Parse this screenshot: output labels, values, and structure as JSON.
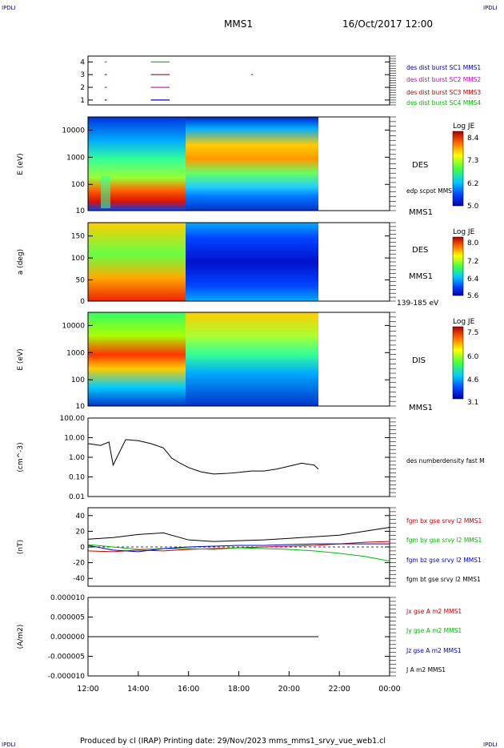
{
  "header": {
    "corner_left": "IPDLI",
    "corner_right": "IPDLI",
    "mission": "MMS1",
    "datetime": "16/Oct/2017 12:00",
    "footer": "Produced by cl (IRAP)   Printing date: 29/Nov/2023   mms_mms1_srvy_vue_web1.cl",
    "corner_bottom_left": "IPDLI",
    "corner_bottom_right": "IPDLI"
  },
  "chart_data": [
    {
      "type": "line",
      "panel": "burst availability",
      "y_ticks": [
        "4",
        "3",
        "2",
        "1"
      ],
      "series": [
        {
          "name": "des dist burst SC1 MMS1",
          "color": "#0000cc",
          "row": 1,
          "segments": [
            [
              "12:40",
              "12:45"
            ],
            [
              "14:30",
              "15:15"
            ]
          ]
        },
        {
          "name": "des dist burst SC2 MMS2",
          "color": "#cc00cc",
          "row": 2,
          "segments": [
            [
              "12:40",
              "12:45"
            ],
            [
              "14:30",
              "15:15"
            ]
          ]
        },
        {
          "name": "des dist burst SC3 MMS3",
          "color": "#cc0000",
          "row": 3,
          "segments": [
            [
              "12:40",
              "12:45"
            ],
            [
              "14:30",
              "15:15"
            ],
            [
              "18:30",
              "18:31"
            ]
          ]
        },
        {
          "name": "des dist burst SC4 MMS4",
          "color": "#00bb00",
          "row": 4,
          "segments": [
            [
              "12:40",
              "12:45"
            ],
            [
              "14:30",
              "15:15"
            ]
          ]
        }
      ]
    },
    {
      "type": "heatmap",
      "panel": "DES energy spectrogram",
      "ylabel": "E (eV)",
      "y_ticks": [
        "10000",
        "1000",
        "100",
        "10"
      ],
      "label": "DES",
      "extra_label": "edp scpot MMS1",
      "sat": "MMS1",
      "colorbar": {
        "title": "Log JE",
        "ticks": [
          "8.4",
          "7.3",
          "6.2",
          "5.0"
        ]
      },
      "data_end": "21:10"
    },
    {
      "type": "heatmap",
      "panel": "DES pitch angle",
      "ylabel": "a (deg)",
      "y_ticks": [
        "150",
        "100",
        "50",
        "0"
      ],
      "label": "DES",
      "sat": "MMS1",
      "energy": "139-185 eV",
      "colorbar": {
        "title": "Log JE",
        "ticks": [
          "8.0",
          "7.2",
          "6.4",
          "5.6"
        ]
      },
      "data_end": "21:10"
    },
    {
      "type": "heatmap",
      "panel": "DIS energy spectrogram",
      "ylabel": "E (eV)",
      "y_ticks": [
        "10000",
        "1000",
        "100",
        "10"
      ],
      "label": "DIS",
      "sat": "MMS1",
      "colorbar": {
        "title": "Log JE",
        "ticks": [
          "7.5",
          "6.0",
          "4.6",
          "3.1"
        ]
      },
      "data_end": "21:10"
    },
    {
      "type": "line",
      "panel": "density",
      "ylabel": "(cm^-3)",
      "y_scale": "log",
      "y_ticks": [
        "100.00",
        "10.00",
        "1.00",
        "0.10",
        "0.01"
      ],
      "series": [
        {
          "name": "des numberdensity fast M",
          "color": "#000000",
          "x": [
            "12:00",
            "12:30",
            "12:50",
            "13:00",
            "13:30",
            "14:00",
            "14:30",
            "15:00",
            "15:20",
            "15:40",
            "16:00",
            "16:30",
            "17:00",
            "17:30",
            "18:00",
            "18:30",
            "19:00",
            "19:30",
            "20:00",
            "20:30",
            "21:00",
            "21:10"
          ],
          "values": [
            5,
            4,
            6,
            0.4,
            8,
            7,
            5,
            3,
            0.9,
            0.5,
            0.3,
            0.18,
            0.14,
            0.15,
            0.17,
            0.2,
            0.2,
            0.25,
            0.35,
            0.5,
            0.4,
            0.25
          ]
        }
      ]
    },
    {
      "type": "line",
      "panel": "magnetic field",
      "ylabel": "(nT)",
      "ylim": [
        -50,
        50
      ],
      "y_ticks": [
        "40",
        "20",
        "0",
        "-20",
        "-40"
      ],
      "series": [
        {
          "name": "fgm bx gse srvy l2 MMS1",
          "color": "#cc0000",
          "x": [
            "12:00",
            "13:00",
            "14:00",
            "15:00",
            "16:00",
            "17:00",
            "18:00",
            "19:00",
            "20:00",
            "21:00",
            "22:00",
            "23:00",
            "00:00"
          ],
          "values": [
            -5,
            -6,
            -4,
            -5,
            -3,
            -2,
            -1,
            0,
            1,
            2,
            4,
            6,
            7
          ]
        },
        {
          "name": "fgm by gse srvy l2 MMS1",
          "color": "#00bb00",
          "x": [
            "12:00",
            "13:00",
            "14:00",
            "15:00",
            "16:00",
            "17:00",
            "18:00",
            "19:00",
            "20:00",
            "21:00",
            "22:00",
            "23:00",
            "00:00"
          ],
          "values": [
            3,
            0,
            -3,
            -2,
            -2,
            -3,
            -1,
            -2,
            -3,
            -5,
            -8,
            -12,
            -18
          ]
        },
        {
          "name": "fgm bz gse srvy l2 MMS1",
          "color": "#0000cc",
          "x": [
            "12:00",
            "13:00",
            "14:00",
            "15:00",
            "16:00",
            "17:00",
            "18:00",
            "19:00",
            "20:00",
            "21:00",
            "22:00",
            "23:00",
            "00:00"
          ],
          "values": [
            2,
            -4,
            -6,
            -2,
            0,
            1,
            2,
            2,
            3,
            4,
            4,
            4,
            4
          ]
        },
        {
          "name": "fgm bt gse srvy l2 MMS1",
          "color": "#000000",
          "x": [
            "12:00",
            "13:00",
            "14:00",
            "15:00",
            "16:00",
            "17:00",
            "18:00",
            "19:00",
            "20:00",
            "21:00",
            "22:00",
            "23:00",
            "00:00"
          ],
          "values": [
            10,
            12,
            16,
            18,
            9,
            7,
            8,
            9,
            11,
            13,
            15,
            20,
            25
          ]
        }
      ]
    },
    {
      "type": "line",
      "panel": "current density",
      "ylabel": "(A/m2)",
      "ylim": [
        -1e-05,
        1e-05
      ],
      "y_ticks": [
        "0.000010",
        "0.000005",
        "0.000000",
        "-0.000005",
        "-0.000010"
      ],
      "x_ticks": [
        "12:00",
        "14:00",
        "16:00",
        "18:00",
        "20:00",
        "22:00",
        "00:00"
      ],
      "series": [
        {
          "name": "Jx gse A m2 MMS1",
          "color": "#cc0000",
          "values": [
            0,
            0
          ]
        },
        {
          "name": "Jy gse A m2 MMS1",
          "color": "#00bb00",
          "values": [
            0,
            0
          ]
        },
        {
          "name": "Jz gse A m2 MMS1",
          "color": "#0000cc",
          "values": [
            0,
            0
          ]
        },
        {
          "name": "J A m2 MMS1",
          "color": "#000000",
          "values": [
            0,
            0
          ]
        }
      ]
    }
  ]
}
